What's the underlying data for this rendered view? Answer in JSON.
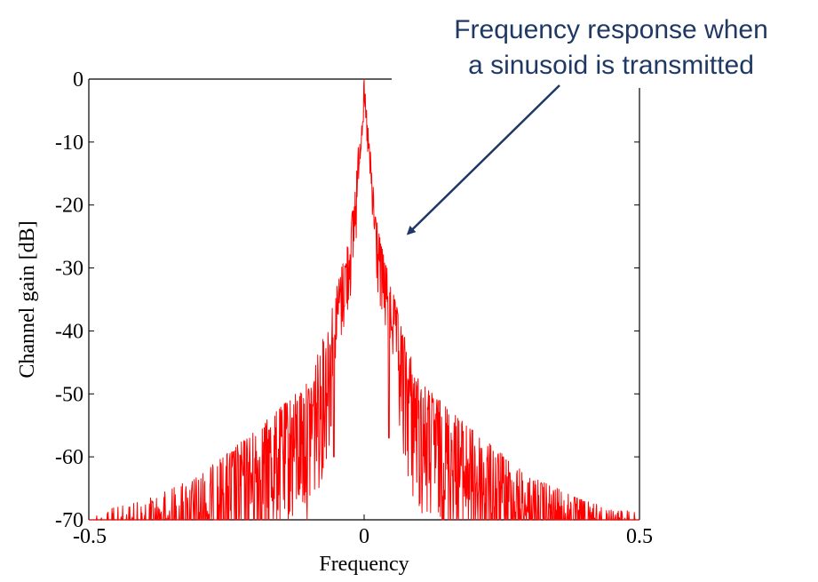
{
  "chart_data": {
    "type": "line",
    "xlabel": "Frequency",
    "ylabel": "Channel gain [dB]",
    "xlim": [
      -0.5,
      0.5
    ],
    "ylim": [
      -70,
      0
    ],
    "xticks": [
      "-0.5",
      "0",
      "0.5"
    ],
    "yticks": [
      "0",
      "-10",
      "-20",
      "-30",
      "-40",
      "-50",
      "-60",
      "-70"
    ],
    "grid": false,
    "annotation": {
      "line1": "Frequency response when",
      "line2": "a sinusoid is transmitted",
      "arrow_to": [
        0.015,
        -25
      ]
    },
    "series": [
      {
        "color": "#ff0000",
        "envelope_x": [
          -0.5,
          -0.4,
          -0.3,
          -0.2,
          -0.15,
          -0.1,
          -0.07,
          -0.05,
          -0.03,
          -0.02,
          -0.01,
          0,
          0.01,
          0.02,
          0.03,
          0.05,
          0.07,
          0.1,
          0.15,
          0.2,
          0.3,
          0.4,
          0.5
        ],
        "envelope_y": [
          -69,
          -67,
          -63,
          -56,
          -52,
          -48,
          -40,
          -33,
          -26,
          -20,
          -10,
          0,
          -10,
          -20,
          -26,
          -33,
          -40,
          -48,
          -52,
          -56,
          -63,
          -67,
          -69
        ],
        "notch_x": [
          -0.055,
          0.045
        ],
        "notch_y": [
          -60,
          -57
        ]
      }
    ],
    "colors": {
      "trace": "#ff0000",
      "annotation": "#1f3864",
      "axes": "#000000"
    }
  }
}
